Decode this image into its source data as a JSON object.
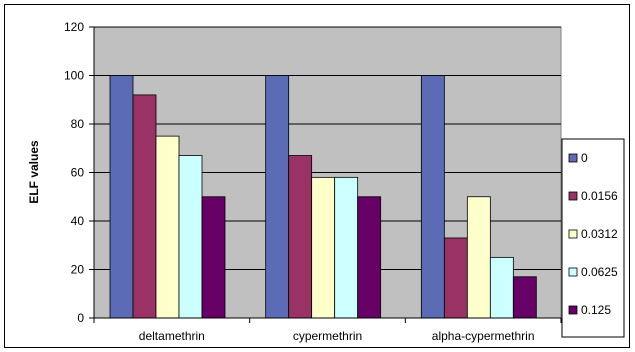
{
  "chart_data": {
    "type": "bar",
    "title": "",
    "xlabel": "",
    "ylabel": "ELF  values",
    "ylim": [
      0,
      120
    ],
    "yticks": [
      0,
      20,
      40,
      60,
      80,
      100,
      120
    ],
    "grid": true,
    "legend_position": "right",
    "plot_background": "#c0c0c0",
    "categories": [
      "deltamethrin",
      "cypermethrin",
      "alpha-cypermethrin"
    ],
    "series": [
      {
        "name": "0",
        "color": "#5b6bb5",
        "values": [
          100,
          100,
          100
        ]
      },
      {
        "name": "0.0156",
        "color": "#993366",
        "values": [
          92,
          67,
          33
        ]
      },
      {
        "name": "0.0312",
        "color": "#ffffcc",
        "values": [
          75,
          58,
          50
        ]
      },
      {
        "name": "0.0625",
        "color": "#ccffff",
        "values": [
          67,
          58,
          25
        ]
      },
      {
        "name": "0.125",
        "color": "#660066",
        "values": [
          50,
          50,
          17
        ]
      }
    ]
  }
}
